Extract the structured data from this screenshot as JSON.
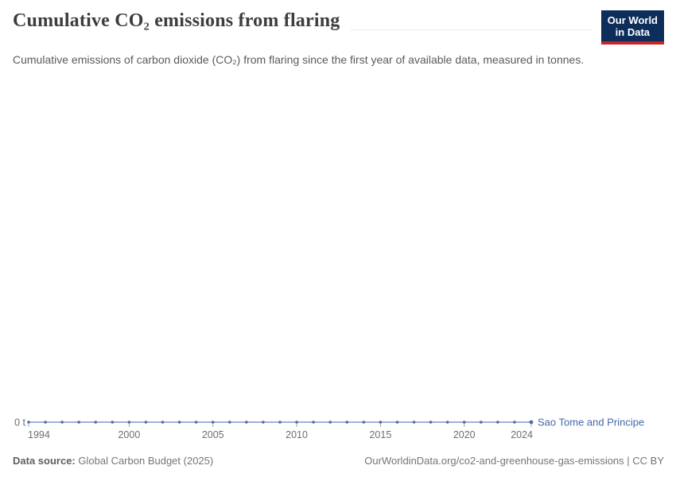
{
  "header": {
    "title": "Cumulative CO₂ emissions from flaring",
    "subtitle": "Cumulative emissions of carbon dioxide (CO₂) from flaring since the first year of available data, measured in tonnes.",
    "logo": {
      "line1": "Our World",
      "line2": "in Data"
    }
  },
  "chart_data": {
    "type": "line",
    "title": "Cumulative CO₂ emissions from flaring",
    "unit": "t",
    "xlabel": "",
    "ylabel": "",
    "x_range": [
      1994,
      2024
    ],
    "ylim": [
      0,
      0
    ],
    "x_ticks": [
      1994,
      2000,
      2005,
      2010,
      2015,
      2020,
      2024
    ],
    "y_tick_labels": [
      "0 t"
    ],
    "grid": false,
    "legend_position": "end-of-line",
    "series": [
      {
        "name": "Sao Tome and Principe",
        "x": [
          1994,
          1995,
          1996,
          1997,
          1998,
          1999,
          2000,
          2001,
          2002,
          2003,
          2004,
          2005,
          2006,
          2007,
          2008,
          2009,
          2010,
          2011,
          2012,
          2013,
          2014,
          2015,
          2016,
          2017,
          2018,
          2019,
          2020,
          2021,
          2022,
          2023,
          2024
        ],
        "values": [
          0,
          0,
          0,
          0,
          0,
          0,
          0,
          0,
          0,
          0,
          0,
          0,
          0,
          0,
          0,
          0,
          0,
          0,
          0,
          0,
          0,
          0,
          0,
          0,
          0,
          0,
          0,
          0,
          0,
          0,
          0
        ]
      }
    ]
  },
  "colors": {
    "line": "#8da8d4",
    "marker": "#4a6ba8",
    "legend_text": "#4568a8",
    "tick": "#a3a3a3",
    "axis_text": "#6e6e6e",
    "logo_bg": "#0d2d5a",
    "logo_bar": "#ca2426"
  },
  "footer": {
    "source_label": "Data source:",
    "source_value": "Global Carbon Budget (2025)",
    "attribution": "OurWorldinData.org/co2-and-greenhouse-gas-emissions | CC BY"
  }
}
